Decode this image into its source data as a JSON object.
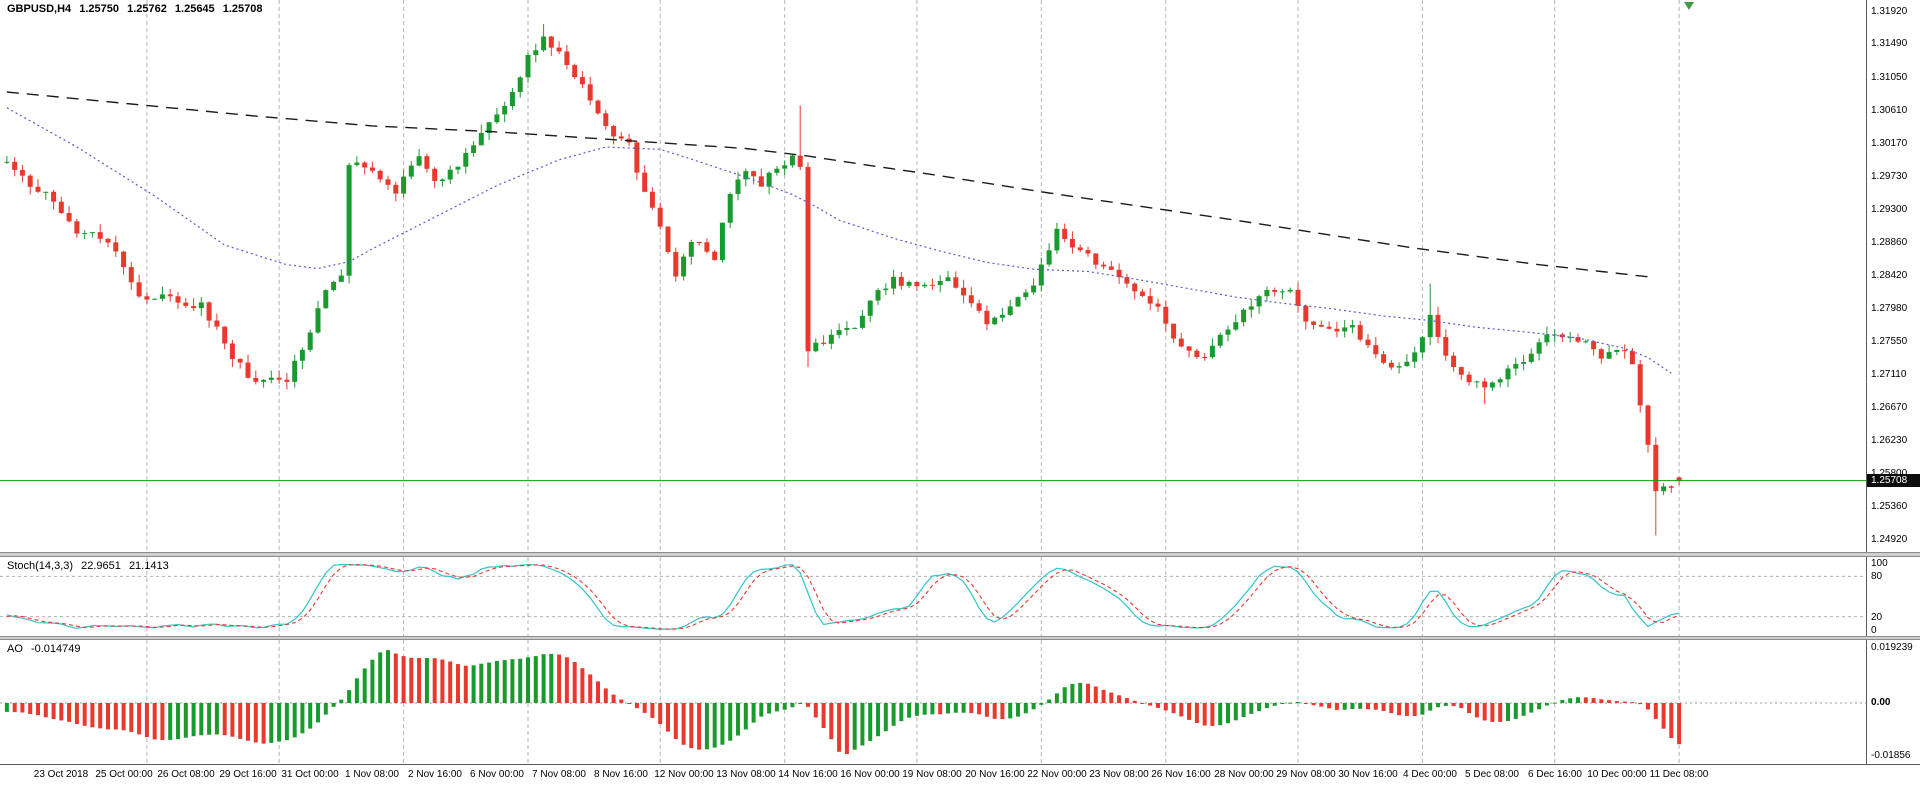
{
  "chart_data": {
    "type": "candlestick",
    "symbol_timeframe": "GBPUSD,H4",
    "quote": {
      "open": "1.25750",
      "high": "1.25762",
      "low": "1.25645",
      "close": "1.25708"
    },
    "current_price": 1.25708,
    "current_price_label": "1.25708",
    "ylim": [
      1.2492,
      1.3192
    ],
    "price_axis_labels": [
      "1.31920",
      "1.31490",
      "1.31050",
      "1.30610",
      "1.30170",
      "1.29730",
      "1.29300",
      "1.28860",
      "1.28420",
      "1.27980",
      "1.27550",
      "1.27110",
      "1.26670",
      "1.26230",
      "1.25800",
      "1.25360",
      "1.24920"
    ],
    "time_labels": [
      "23 Oct 2018",
      "25 Oct 00:00",
      "26 Oct 08:00",
      "29 Oct 16:00",
      "31 Oct 00:00",
      "1 Nov 08:00",
      "2 Nov 16:00",
      "6 Nov 00:00",
      "7 Nov 08:00",
      "8 Nov 16:00",
      "12 Nov 00:00",
      "13 Nov 08:00",
      "14 Nov 16:00",
      "16 Nov 00:00",
      "19 Nov 08:00",
      "20 Nov 16:00",
      "22 Nov 00:00",
      "23 Nov 08:00",
      "26 Nov 16:00",
      "28 Nov 00:00",
      "29 Nov 08:00",
      "30 Nov 16:00",
      "4 Dec 00:00",
      "5 Dec 08:00",
      "6 Dec 16:00",
      "10 Dec 00:00",
      "11 Dec 08:00"
    ],
    "bars": 216,
    "bars_per_label": 8,
    "first_label_bar": 7,
    "prehistory": {
      "from": 1.306,
      "to": 1.2995,
      "bars": 34
    },
    "close_anchors": [
      [
        0,
        1.299
      ],
      [
        5,
        1.295
      ],
      [
        9,
        1.29
      ],
      [
        13,
        1.2892
      ],
      [
        17,
        1.2818
      ],
      [
        21,
        1.2812
      ],
      [
        25,
        1.2802
      ],
      [
        29,
        1.2737
      ],
      [
        32,
        1.2697
      ],
      [
        36,
        1.2706
      ],
      [
        39,
        1.277
      ],
      [
        41,
        1.2827
      ],
      [
        43,
        1.284
      ],
      [
        44,
        1.2995
      ],
      [
        47,
        1.2981
      ],
      [
        50,
        1.2956
      ],
      [
        53,
        1.3005
      ],
      [
        55,
        1.2965
      ],
      [
        58,
        1.2989
      ],
      [
        61,
        1.303
      ],
      [
        65,
        1.3086
      ],
      [
        67,
        1.3135
      ],
      [
        69,
        1.3155
      ],
      [
        71,
        1.3135
      ],
      [
        73,
        1.3111
      ],
      [
        76,
        1.3062
      ],
      [
        78,
        1.303
      ],
      [
        80,
        1.3017
      ],
      [
        82,
        1.2948
      ],
      [
        84,
        1.2908
      ],
      [
        86,
        1.2843
      ],
      [
        88,
        1.2892
      ],
      [
        91,
        1.2867
      ],
      [
        93,
        1.2948
      ],
      [
        95,
        1.2981
      ],
      [
        97,
        1.2965
      ],
      [
        99,
        1.2989
      ],
      [
        101,
        1.3
      ],
      [
        102,
        1.2992
      ],
      [
        103,
        1.2745
      ],
      [
        106,
        1.2762
      ],
      [
        109,
        1.2778
      ],
      [
        111,
        1.281
      ],
      [
        114,
        1.2835
      ],
      [
        117,
        1.2827
      ],
      [
        121,
        1.2835
      ],
      [
        124,
        1.281
      ],
      [
        126,
        1.2778
      ],
      [
        129,
        1.2802
      ],
      [
        132,
        1.2835
      ],
      [
        135,
        1.2905
      ],
      [
        137,
        1.2875
      ],
      [
        139,
        1.2867
      ],
      [
        142,
        1.2851
      ],
      [
        145,
        1.2827
      ],
      [
        148,
        1.2802
      ],
      [
        151,
        1.2745
      ],
      [
        154,
        1.2729
      ],
      [
        156,
        1.2762
      ],
      [
        159,
        1.2794
      ],
      [
        162,
        1.2818
      ],
      [
        165,
        1.2827
      ],
      [
        167,
        1.2778
      ],
      [
        170,
        1.277
      ],
      [
        173,
        1.2778
      ],
      [
        175,
        1.2745
      ],
      [
        178,
        1.2721
      ],
      [
        181,
        1.2737
      ],
      [
        183,
        1.2794
      ],
      [
        185,
        1.2737
      ],
      [
        188,
        1.2705
      ],
      [
        191,
        1.2697
      ],
      [
        193,
        1.2721
      ],
      [
        196,
        1.2737
      ],
      [
        198,
        1.277
      ],
      [
        200,
        1.2762
      ],
      [
        203,
        1.2754
      ],
      [
        205,
        1.2737
      ],
      [
        207,
        1.2745
      ],
      [
        209,
        1.273
      ],
      [
        210,
        1.2672
      ],
      [
        211,
        1.262
      ],
      [
        212,
        1.2559
      ],
      [
        213,
        1.2567
      ],
      [
        214,
        1.2562
      ],
      [
        215,
        1.25708
      ]
    ],
    "overrides": {
      "69": {
        "h": 1.3176
      },
      "102": {
        "h": 1.3068
      },
      "103": {
        "l": 1.2721
      },
      "183": {
        "h": 1.2832
      },
      "190": {
        "l": 1.2672
      },
      "212": {
        "l": 1.2498
      },
      "215": {
        "o": 1.2575,
        "h": 1.25762,
        "l": 1.25645,
        "c": 1.25708
      }
    },
    "ma_fast": {
      "color": "#5a5ad0",
      "style": "dotted",
      "points": [
        [
          0,
          1.3065
        ],
        [
          9,
          1.3013
        ],
        [
          19,
          1.2948
        ],
        [
          28,
          1.2883
        ],
        [
          36,
          1.2857
        ],
        [
          40,
          1.2852
        ],
        [
          44,
          1.2861
        ],
        [
          47,
          1.2878
        ],
        [
          55,
          1.292
        ],
        [
          63,
          1.2962
        ],
        [
          71,
          1.2996
        ],
        [
          77,
          1.3013
        ],
        [
          84,
          1.301
        ],
        [
          88,
          1.2997
        ],
        [
          95,
          1.2973
        ],
        [
          101,
          1.295
        ],
        [
          104,
          1.2934
        ],
        [
          107,
          1.2916
        ],
        [
          114,
          1.2892
        ],
        [
          120,
          1.2875
        ],
        [
          126,
          1.286
        ],
        [
          132,
          1.2851
        ],
        [
          139,
          1.2848
        ],
        [
          145,
          1.2838
        ],
        [
          151,
          1.2827
        ],
        [
          158,
          1.2814
        ],
        [
          164,
          1.2806
        ],
        [
          170,
          1.2799
        ],
        [
          177,
          1.2789
        ],
        [
          183,
          1.2783
        ],
        [
          189,
          1.2774
        ],
        [
          196,
          1.2767
        ],
        [
          202,
          1.276
        ],
        [
          208,
          1.2746
        ],
        [
          211,
          1.2734
        ],
        [
          214,
          1.2713
        ]
      ]
    },
    "ma_slow": {
      "color": "#1a1a1a",
      "style": "dashed",
      "points": [
        [
          0,
          1.3086
        ],
        [
          16,
          1.307
        ],
        [
          32,
          1.3054
        ],
        [
          47,
          1.3041
        ],
        [
          63,
          1.3033
        ],
        [
          79,
          1.3022
        ],
        [
          95,
          1.3011
        ],
        [
          103,
          1.3001
        ],
        [
          110,
          1.299
        ],
        [
          118,
          1.2978
        ],
        [
          126,
          1.2965
        ],
        [
          134,
          1.2952
        ],
        [
          142,
          1.294
        ],
        [
          150,
          1.2928
        ],
        [
          158,
          1.2916
        ],
        [
          166,
          1.2903
        ],
        [
          174,
          1.289
        ],
        [
          181,
          1.2879
        ],
        [
          189,
          1.2868
        ],
        [
          197,
          1.2857
        ],
        [
          205,
          1.2848
        ],
        [
          211,
          1.2841
        ]
      ]
    },
    "stoch": {
      "title": "Stoch(14,3,3)",
      "k_value": "22.9651",
      "d_value": "21.1413",
      "k_period": 14,
      "d_period": 3,
      "slowing": 3,
      "axis_labels": [
        "100",
        "80",
        "20",
        "0"
      ],
      "axis_values": [
        100,
        80,
        20,
        0
      ],
      "levels": [
        80,
        20
      ],
      "range": [
        0,
        100
      ],
      "k_color": "#2fc5c9",
      "d_color": "#e8392e"
    },
    "ao": {
      "title": "AO",
      "value": "-0.014749",
      "axis_top": "0.019239",
      "axis_zero": "0.00",
      "axis_bottom": "-0.01856",
      "ylim": [
        -0.01856,
        0.019239
      ],
      "up_color": "#1a9a2e",
      "down_color": "#e8392e"
    },
    "colors": {
      "up": "#1a9a2e",
      "down": "#e8392e",
      "grid": "#b5b5b5",
      "price_line": "#0aa000",
      "background": "#ffffff",
      "text": "#000000",
      "shift_marker": "#3f9b41"
    }
  }
}
